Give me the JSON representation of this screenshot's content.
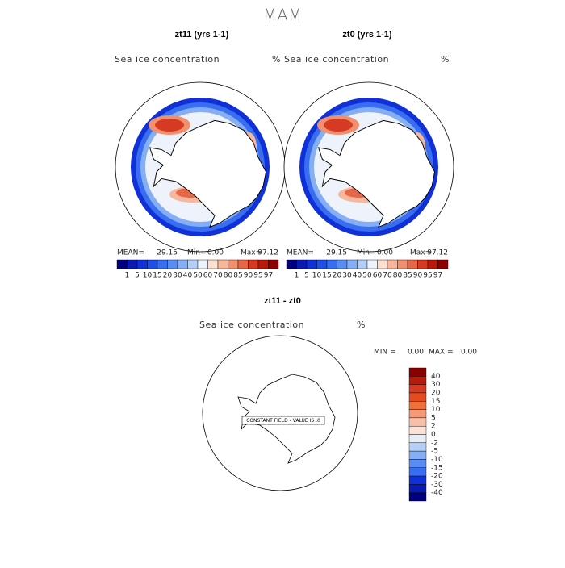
{
  "title": "MAM",
  "panels": [
    {
      "title": "zt11 (yrs 1-1)",
      "label": "Sea ice concentration",
      "units": "%",
      "stats": [
        "MEAN=",
        "29.15",
        "Min=",
        "0.00",
        "Max=",
        "97.12"
      ]
    },
    {
      "title": "zt0 (yrs 1-1)",
      "label": "Sea ice concentration",
      "units": "%",
      "stats": [
        "MEAN=",
        "29.15",
        "Min=",
        "0.00",
        "Max=",
        "97.12"
      ]
    }
  ],
  "colorbar": {
    "labels": [
      "1",
      "5",
      "10",
      "15",
      "20",
      "30",
      "40",
      "50",
      "60",
      "70",
      "80",
      "85",
      "90",
      "95",
      "97"
    ],
    "colors": [
      "#00007f",
      "#0a1ab0",
      "#1030d8",
      "#1f4ee8",
      "#3a6ef0",
      "#5a8cf2",
      "#86aef4",
      "#b4cff7",
      "#eef2fa",
      "#fbe0d2",
      "#f7b79c",
      "#f0906f",
      "#e66648",
      "#d63a22",
      "#b81a0c",
      "#8b0000"
    ]
  },
  "difference": {
    "title": "zt11 - zt0",
    "label": "Sea ice concentration",
    "units": "%",
    "stats": [
      "MIN =",
      "0.00",
      "MAX =",
      "0.00"
    ],
    "message": "CONSTANT FIELD - VALUE IS .0",
    "colorbar": {
      "labels": [
        "40",
        "30",
        "20",
        "15",
        "10",
        "5",
        "2",
        "0",
        "-2",
        "-5",
        "-10",
        "-15",
        "-20",
        "-30",
        "-40"
      ],
      "colors": [
        "#8b0000",
        "#b81a0c",
        "#d63a22",
        "#e64a1f",
        "#f0703c",
        "#f59a78",
        "#f8c0a8",
        "#fbe2d4",
        "#e8eef8",
        "#b4cff7",
        "#86aef4",
        "#5a8cf2",
        "#3a6ef0",
        "#1030d8",
        "#0a1ab0",
        "#00007f"
      ]
    }
  }
}
